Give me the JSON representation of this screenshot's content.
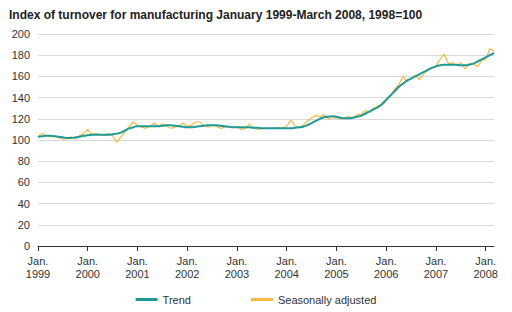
{
  "chart_data": {
    "type": "line",
    "title": "Index of turnover for manufacturing January 1999-March 2008, 1998=100",
    "categories": [
      "Jan.\n1999",
      null,
      null,
      null,
      null,
      null,
      null,
      null,
      null,
      null,
      null,
      null,
      "Jan.\n2000",
      null,
      null,
      null,
      null,
      null,
      null,
      null,
      null,
      null,
      null,
      null,
      "Jan.\n2001",
      null,
      null,
      null,
      null,
      null,
      null,
      null,
      null,
      null,
      null,
      null,
      "Jan.\n2002",
      null,
      null,
      null,
      null,
      null,
      null,
      null,
      null,
      null,
      null,
      null,
      "Jan.\n2003",
      null,
      null,
      null,
      null,
      null,
      null,
      null,
      null,
      null,
      null,
      null,
      "Jan.\n2004",
      null,
      null,
      null,
      null,
      null,
      null,
      null,
      null,
      null,
      null,
      null,
      "Jan.\n2005",
      null,
      null,
      null,
      null,
      null,
      null,
      null,
      null,
      null,
      null,
      null,
      "Jan.\n2006",
      null,
      null,
      null,
      null,
      null,
      null,
      null,
      null,
      null,
      null,
      null,
      "Jan.\n2007",
      null,
      null,
      null,
      null,
      null,
      null,
      null,
      null,
      null,
      null,
      null,
      "Jan.\n2008",
      null,
      null
    ],
    "series": [
      {
        "name": "Trend",
        "color": "#1f9a98",
        "values": [
          103,
          103.5,
          104,
          104,
          103.5,
          103,
          102.5,
          102,
          102,
          102.5,
          103,
          104,
          104.5,
          105,
          105,
          105,
          105,
          105,
          105.5,
          106,
          107,
          109,
          111,
          112,
          113,
          113,
          113,
          113,
          113,
          113,
          113.5,
          114,
          114,
          113.5,
          113,
          112.5,
          112,
          112,
          112.5,
          113,
          113.5,
          114,
          114,
          114,
          113.5,
          113,
          112.5,
          112,
          112,
          112,
          112,
          112,
          111.5,
          111.5,
          111,
          111,
          111,
          111,
          111,
          111,
          111,
          111,
          111.5,
          112,
          112.5,
          114,
          116,
          118,
          120,
          121.5,
          122,
          122.5,
          122,
          121,
          120.5,
          120.5,
          121,
          122,
          123,
          125,
          127,
          129,
          131,
          134,
          138,
          142,
          146,
          150,
          153,
          156,
          158,
          160,
          162,
          164,
          166,
          168,
          169.5,
          170.5,
          171,
          171,
          171,
          171,
          170.5,
          170.5,
          171,
          172,
          174,
          176,
          178,
          180,
          182
        ]
      },
      {
        "name": "Seasonally adjusted",
        "color": "#f6b942",
        "values": [
          103,
          106,
          104,
          103,
          104,
          102,
          101,
          101,
          103,
          101,
          104,
          106,
          110,
          105,
          106,
          105,
          104,
          106,
          104,
          98,
          103,
          107,
          113,
          117,
          114,
          112,
          111,
          113,
          116,
          113,
          115,
          113,
          111,
          112,
          113,
          116,
          113,
          114,
          117,
          117,
          114,
          112,
          114,
          113,
          111,
          112,
          113,
          112,
          113,
          110,
          111,
          115,
          111,
          110,
          111,
          111,
          111,
          111,
          112,
          111,
          113,
          119,
          113,
          112,
          114,
          118,
          121,
          123,
          122,
          124,
          120,
          121,
          121,
          120,
          121,
          122,
          121,
          124,
          124,
          128,
          126,
          130,
          132,
          133,
          137,
          141,
          148,
          152,
          160,
          155,
          158,
          161,
          157,
          162,
          167,
          168,
          170,
          176,
          181,
          172,
          173,
          170,
          173,
          167,
          172,
          172,
          169,
          175,
          176,
          186,
          184
        ]
      }
    ],
    "ylim": [
      0,
      200
    ],
    "yticks": [
      0,
      20,
      40,
      60,
      80,
      100,
      120,
      140,
      160,
      180,
      200
    ],
    "grid": true,
    "legend": "bottom"
  }
}
